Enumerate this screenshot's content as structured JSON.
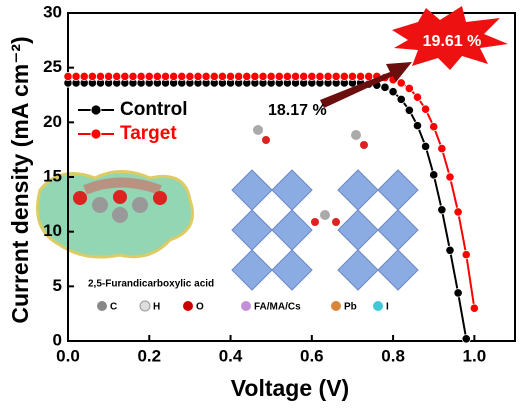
{
  "chart_data": {
    "type": "line",
    "xlabel": "Voltage (V)",
    "ylabel": "Current density (mA cm⁻²)",
    "xlim": [
      0,
      1.1
    ],
    "ylim": [
      0,
      30
    ],
    "xticks": [
      {
        "value": 0,
        "label": "0.0"
      },
      0.2,
      0.4,
      0.6,
      0.8,
      {
        "value": 1,
        "label": "1.0"
      }
    ],
    "yticks": [
      0,
      5,
      10,
      15,
      20,
      25,
      30
    ],
    "legend": "upper left",
    "x": [
      0,
      0.02,
      0.04,
      0.06,
      0.08,
      0.1,
      0.12,
      0.14,
      0.16,
      0.18,
      0.2,
      0.22,
      0.24,
      0.26,
      0.28,
      0.3,
      0.32,
      0.34,
      0.36,
      0.38,
      0.4,
      0.42,
      0.44,
      0.46,
      0.48,
      0.5,
      0.52,
      0.54,
      0.56,
      0.58,
      0.6,
      0.62,
      0.64,
      0.66,
      0.68,
      0.7,
      0.72,
      0.74,
      0.76,
      0.78,
      0.8,
      0.82,
      0.84,
      0.86,
      0.88,
      0.9,
      0.92,
      0.94,
      0.96,
      0.98,
      1.0
    ],
    "series": [
      {
        "name": "Control",
        "color": "#000000",
        "values": [
          23.6,
          23.6,
          23.6,
          23.6,
          23.6,
          23.6,
          23.6,
          23.6,
          23.6,
          23.6,
          23.6,
          23.6,
          23.6,
          23.6,
          23.6,
          23.6,
          23.6,
          23.6,
          23.6,
          23.6,
          23.6,
          23.6,
          23.6,
          23.6,
          23.6,
          23.6,
          23.6,
          23.6,
          23.6,
          23.6,
          23.6,
          23.6,
          23.6,
          23.6,
          23.6,
          23.6,
          23.6,
          23.5,
          23.4,
          23.2,
          22.8,
          22.1,
          21.1,
          19.7,
          17.8,
          15.2,
          12.0,
          8.3,
          4.4,
          0.2,
          null
        ]
      },
      {
        "name": "Target",
        "color": "#ff0000",
        "values": [
          24.2,
          24.2,
          24.2,
          24.2,
          24.2,
          24.2,
          24.2,
          24.2,
          24.2,
          24.2,
          24.2,
          24.2,
          24.2,
          24.2,
          24.2,
          24.2,
          24.2,
          24.2,
          24.2,
          24.2,
          24.2,
          24.2,
          24.2,
          24.2,
          24.2,
          24.2,
          24.2,
          24.2,
          24.2,
          24.2,
          24.2,
          24.2,
          24.2,
          24.2,
          24.2,
          24.2,
          24.2,
          24.2,
          24.2,
          24.1,
          23.9,
          23.6,
          23.1,
          22.3,
          21.2,
          19.6,
          17.6,
          15.0,
          11.8,
          7.9,
          3.0
        ]
      }
    ],
    "annotations": [
      "18.17 %",
      "19.61 %"
    ],
    "inset": {
      "molecule": "2,5-Furandicarboxylic acid",
      "atoms": [
        "C",
        "H",
        "O",
        "FA/MA/Cs",
        "Pb",
        "I"
      ]
    }
  }
}
